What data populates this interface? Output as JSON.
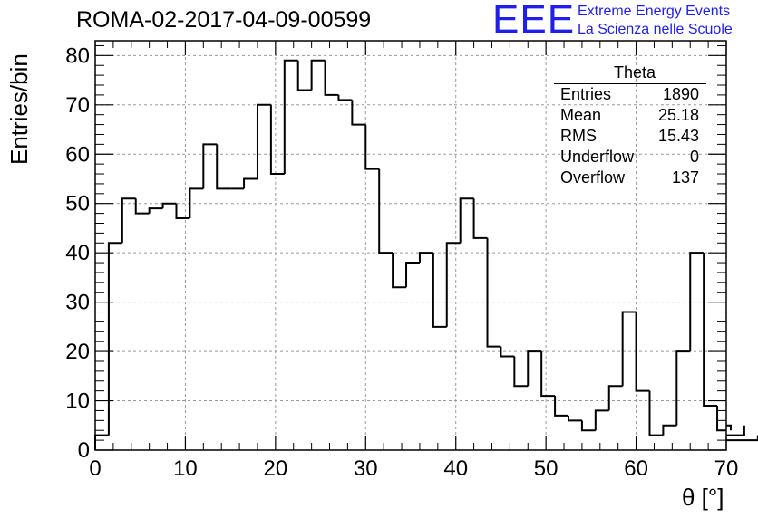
{
  "header": {
    "title": "ROMA-02-2017-04-09-00599",
    "logo_text": "EEE",
    "logo_line1": "Extreme Energy Events",
    "logo_line2": "La Scienza nelle Scuole",
    "logo_color": "#1f1fe8"
  },
  "stats_box": {
    "title": "Theta",
    "rows": [
      {
        "label": "Entries",
        "value": "1890"
      },
      {
        "label": "Mean",
        "value": "25.18"
      },
      {
        "label": "RMS",
        "value": "15.43"
      },
      {
        "label": "Underflow",
        "value": "0"
      },
      {
        "label": "Overflow",
        "value": "137"
      }
    ]
  },
  "chart_data": {
    "type": "bar",
    "style": "step-histogram",
    "title": "ROMA-02-2017-04-09-00599",
    "xlabel": "θ [°]",
    "ylabel": "Entries/bin",
    "xlim": [
      0,
      70
    ],
    "ylim": [
      0,
      83
    ],
    "bin_width": 1.5,
    "bin_start": 0,
    "values": [
      3,
      42,
      51,
      48,
      49,
      50,
      47,
      53,
      62,
      53,
      53,
      55,
      70,
      56,
      79,
      73,
      79,
      72,
      71,
      66,
      57,
      40,
      33,
      38,
      40,
      25,
      42,
      51,
      43,
      21,
      19,
      13,
      20,
      11,
      7,
      6,
      4,
      8,
      13,
      28,
      12,
      3,
      5,
      20,
      40,
      9,
      4,
      5,
      3,
      2
    ],
    "x_ticks": [
      "0",
      "10",
      "20",
      "30",
      "40",
      "50",
      "60",
      "70"
    ],
    "y_ticks": [
      "0",
      "10",
      "20",
      "30",
      "40",
      "50",
      "60",
      "70",
      "80"
    ],
    "grid": true,
    "line_color": "#000000"
  }
}
